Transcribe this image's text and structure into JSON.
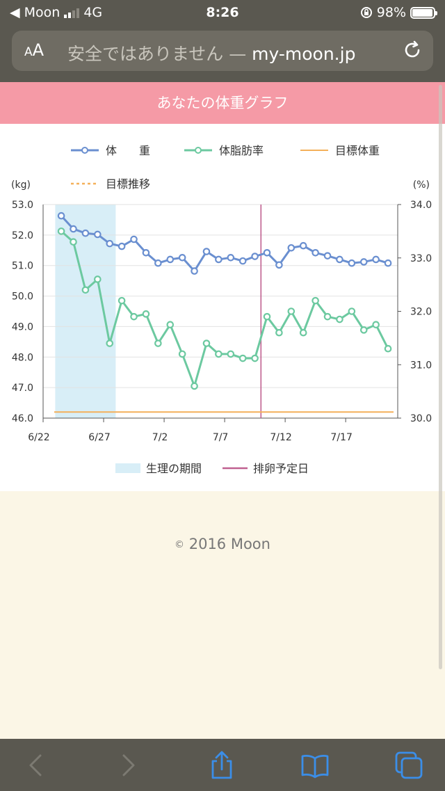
{
  "status": {
    "carrier": "Moon",
    "network": "4G",
    "time": "8:26",
    "battery": "98%",
    "battery_level": 0.98
  },
  "browser": {
    "aa_small": "A",
    "aa_large": "A",
    "insecure_label": "安全ではありません —",
    "domain": "my-moon.jp"
  },
  "page": {
    "banner": "あなたの体重グラフ",
    "footer": "2016 Moon",
    "copyright_symbol": "©"
  },
  "colors": {
    "weight": "#6a8fd0",
    "fat": "#6cc9a0",
    "target": "#f4b05a",
    "period": "#d8eef7",
    "ovulation": "#c06090",
    "banner": "#f59aa6"
  },
  "chart_data": {
    "type": "line",
    "legend_top": [
      {
        "name": "体　　重",
        "style": "line-marker",
        "color": "#6a8fd0"
      },
      {
        "name": "体脂肪率",
        "style": "line-marker",
        "color": "#6cc9a0"
      },
      {
        "name": "目標体重",
        "style": "line",
        "color": "#f4b05a"
      },
      {
        "name": "目標推移",
        "style": "dashed",
        "color": "#f4b05a"
      }
    ],
    "legend_bottom": [
      {
        "name": "生理の期間",
        "style": "band",
        "color": "#d8eef7"
      },
      {
        "name": "排卵予定日",
        "style": "line",
        "color": "#c06090"
      }
    ],
    "ylabel_left": "(kg)",
    "ylabel_right": "(%)",
    "ylim_left": [
      46.0,
      53.0
    ],
    "ylim_right": [
      30.0,
      34.0
    ],
    "y_ticks_left": [
      "53.0",
      "52.0",
      "51.0",
      "50.0",
      "49.0",
      "48.0",
      "47.0",
      "46.0"
    ],
    "y_ticks_right": [
      "34.0",
      "33.0",
      "32.0",
      "31.0",
      "30.0"
    ],
    "x_ticks": [
      {
        "label": "6/22",
        "day": 0
      },
      {
        "label": "6/27",
        "day": 5
      },
      {
        "label": "7/2",
        "day": 10
      },
      {
        "label": "7/7",
        "day": 15
      },
      {
        "label": "7/12",
        "day": 20
      },
      {
        "label": "7/17",
        "day": 25
      }
    ],
    "x_range": [
      0,
      29.3
    ],
    "series": [
      {
        "name": "体　　重",
        "axis": "left",
        "color": "#6a8fd0",
        "x": [
          1.5,
          2.5,
          3.5,
          4.5,
          5.5,
          6.5,
          7.5,
          8.5,
          9.5,
          10.5,
          11.5,
          12.5,
          13.5,
          14.5,
          15.5,
          16.5,
          17.5,
          18.5,
          19.5,
          20.5,
          21.5,
          22.5,
          23.5,
          24.5,
          25.5,
          26.5,
          27.5,
          28.5
        ],
        "y": [
          52.63,
          52.2,
          52.06,
          52.02,
          51.72,
          51.63,
          51.86,
          51.42,
          51.08,
          51.2,
          51.26,
          50.82,
          51.46,
          51.2,
          51.26,
          51.15,
          51.3,
          51.42,
          51.02,
          51.58,
          51.65,
          51.42,
          51.32,
          51.2,
          51.08,
          51.12,
          51.2,
          51.08
        ]
      },
      {
        "name": "体脂肪率",
        "axis": "right",
        "color": "#6cc9a0",
        "x": [
          1.5,
          2.5,
          3.5,
          4.5,
          5.5,
          6.5,
          7.5,
          8.5,
          9.5,
          10.5,
          11.5,
          12.5,
          13.5,
          14.5,
          15.5,
          16.5,
          17.5,
          18.5,
          19.5,
          20.5,
          21.5,
          22.5,
          23.5,
          24.5,
          25.5,
          26.5,
          27.5,
          28.5
        ],
        "y": [
          33.5,
          33.3,
          32.4,
          32.6,
          31.4,
          32.2,
          31.9,
          31.95,
          31.4,
          31.75,
          31.2,
          30.6,
          31.4,
          31.2,
          31.2,
          31.12,
          31.12,
          31.9,
          31.6,
          32.0,
          31.6,
          32.2,
          31.9,
          31.85,
          32.0,
          31.65,
          31.75,
          31.3
        ]
      }
    ],
    "target_weight": 46.2,
    "period_band": [
      1.0,
      6.0
    ],
    "ovulation_day": 18.0
  }
}
